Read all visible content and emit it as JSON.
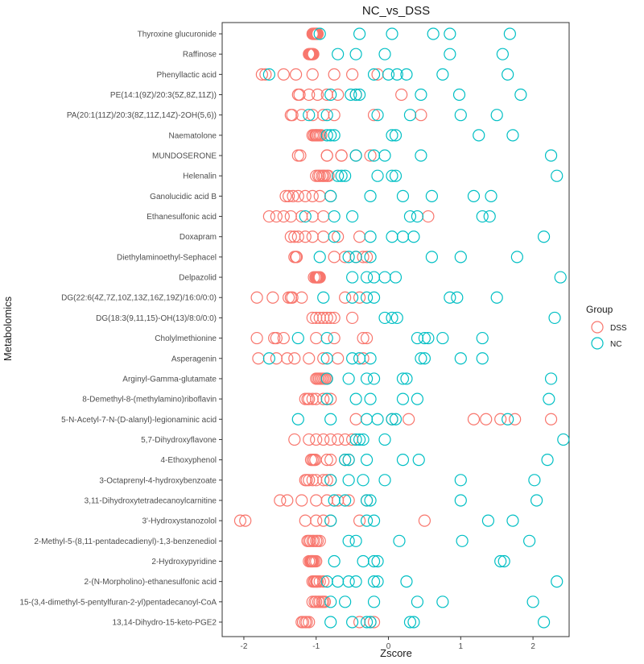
{
  "chart_data": {
    "type": "scatter",
    "title": "NC_vs_DSS",
    "xlabel": "Zscore",
    "ylabel": "Metabolomics",
    "xlim": [
      -2.3,
      2.5
    ],
    "xticks": [
      -2,
      -1,
      0,
      1,
      2
    ],
    "grid": false,
    "legend": {
      "title": "Group",
      "position": "right",
      "entries": [
        "DSS",
        "NC"
      ]
    },
    "colors": {
      "DSS": "#F8766D",
      "NC": "#00BFC4"
    },
    "marker": "open-circle",
    "categories": [
      "Thyroxine glucuronide",
      "Raffinose",
      "Phenyllactic acid",
      "PE(14:1(9Z)/20:3(5Z,8Z,11Z))",
      "PA(20:1(11Z)/20:3(8Z,11Z,14Z)-2OH(5,6))",
      "Naematolone",
      "MUNDOSERONE",
      "Helenalin",
      "Ganolucidic acid B",
      "Ethanesulfonic acid",
      "Doxapram",
      "Diethylaminoethyl-Sephacel",
      "Delpazolid",
      "DG(22:6(4Z,7Z,10Z,13Z,16Z,19Z)/16:0/0:0)",
      "DG(18:3(9,11,15)-OH(13)/8:0/0:0)",
      "Cholylmethionine",
      "Asperagenin",
      "Arginyl-Gamma-glutamate",
      "8-Demethyl-8-(methylamino)riboflavin",
      "5-N-Acetyl-7-N-(D-alanyl)-legionaminic acid",
      "5,7-Dihydroxyflavone",
      "4-Ethoxyphenol",
      "3-Octaprenyl-4-hydroxybenzoate",
      "3,11-Dihydroxytetradecanoylcarnitine",
      "3'-Hydroxystanozolol",
      "2-Methyl-5-(8,11-pentadecadienyl)-1,3-benzenediol",
      "2-Hydroxypyridine",
      "2-(N-Morpholino)-ethanesulfonic acid",
      "15-(3,4-dimethyl-5-pentylfuran-2-yl)pentadecanoyl-CoA",
      "13,14-Dihydro-15-keto-PGE2"
    ],
    "series": [
      {
        "name": "DSS",
        "values": [
          [
            -1.05,
            -1.03,
            -1.01,
            -0.99,
            -1.02,
            -1.0,
            -1.04,
            -0.98
          ],
          [
            -1.1,
            -1.08,
            -1.06,
            -1.05,
            -1.09,
            -1.07,
            -1.04,
            -1.06
          ],
          [
            -1.75,
            -1.7,
            -1.45,
            -1.28,
            -1.05,
            -0.75,
            -0.5,
            -0.15
          ],
          [
            -1.25,
            -1.23,
            -1.1,
            -0.98,
            -0.85,
            -0.7,
            -0.45,
            0.18
          ],
          [
            -1.35,
            -1.33,
            -1.2,
            -1.05,
            -0.9,
            -0.75,
            -0.2,
            0.45
          ],
          [
            -1.05,
            -1.03,
            -1.01,
            -0.99,
            -0.97,
            -1.0,
            -0.95,
            -0.93
          ],
          [
            -1.25,
            -1.22,
            -0.85,
            -0.65,
            -0.45,
            -0.25,
            -0.85,
            -0.65
          ],
          [
            -1.0,
            -0.97,
            -0.95,
            -0.92,
            -0.9,
            -0.88,
            -0.85,
            -0.83
          ],
          [
            -1.42,
            -1.38,
            -1.32,
            -1.25,
            -1.15,
            -1.05,
            -0.95,
            -0.8
          ],
          [
            -1.65,
            -1.55,
            -1.45,
            -1.35,
            -1.2,
            -1.05,
            -0.9,
            0.55
          ],
          [
            -1.35,
            -1.3,
            -1.25,
            -1.15,
            -1.05,
            -0.9,
            -0.7,
            -0.4
          ],
          [
            -1.3,
            -1.28,
            -1.27,
            -0.75,
            -0.6,
            -0.45,
            -0.35,
            -0.3
          ],
          [
            -1.03,
            -1.01,
            -0.99,
            -0.97,
            -0.95,
            -1.0,
            -0.98,
            -0.96
          ],
          [
            -1.82,
            -1.6,
            -1.38,
            -1.35,
            -1.33,
            -1.2,
            -0.6,
            -0.4
          ],
          [
            -1.05,
            -1.0,
            -0.95,
            -0.9,
            -0.85,
            -0.8,
            -0.75,
            -0.5
          ],
          [
            -1.82,
            -1.58,
            -1.55,
            -1.45,
            -1.0,
            -0.75,
            -0.35,
            -0.3
          ],
          [
            -1.8,
            -1.55,
            -1.4,
            -1.3,
            -1.1,
            -0.9,
            -0.7,
            -0.35
          ],
          [
            -1.0,
            -0.98,
            -0.96,
            -0.94,
            -0.92,
            -0.9,
            -0.88,
            -0.86
          ],
          [
            -1.15,
            -1.12,
            -1.1,
            -1.05,
            -1.0,
            -0.9,
            -0.85,
            -0.8
          ],
          [
            -0.45,
            0.05,
            0.28,
            1.18,
            1.35,
            1.55,
            1.75,
            2.25
          ],
          [
            -1.3,
            -1.1,
            -1.0,
            -0.9,
            -0.8,
            -0.7,
            -0.6,
            -0.5
          ],
          [
            -1.07,
            -1.05,
            -1.03,
            -1.01,
            -0.85,
            -0.8,
            -0.6,
            -0.55
          ],
          [
            -1.15,
            -1.13,
            -1.1,
            -1.05,
            -1.0,
            -0.9,
            -0.85,
            -0.8
          ],
          [
            -1.5,
            -1.4,
            -1.2,
            -1.0,
            -0.85,
            -0.7,
            -0.55,
            -0.3
          ],
          [
            -2.05,
            -1.98,
            -1.15,
            -1.0,
            -0.9,
            -0.8,
            -0.4,
            0.5
          ],
          [
            -1.12,
            -1.1,
            -1.08,
            -1.05,
            -1.03,
            -1.0,
            -0.98,
            -0.95
          ],
          [
            -1.1,
            -1.08,
            -1.06,
            -1.04,
            -1.02,
            -1.0,
            -1.05,
            -1.07
          ],
          [
            -1.05,
            -1.03,
            -1.0,
            -0.98,
            -0.95,
            -0.9,
            -1.02,
            -0.99
          ],
          [
            -1.05,
            -1.02,
            -1.0,
            -0.97,
            -0.95,
            -0.92,
            -0.9,
            -0.88
          ],
          [
            -1.2,
            -1.18,
            -1.15,
            -1.13,
            -1.1,
            -0.4,
            -0.25,
            -0.2
          ]
        ]
      },
      {
        "name": "NC",
        "values": [
          [
            -0.95,
            -0.4,
            0.05,
            0.62,
            0.85,
            1.68
          ],
          [
            -0.7,
            -0.45,
            -0.05,
            0.85,
            1.58
          ],
          [
            -1.65,
            -0.2,
            0.0,
            0.12,
            0.25,
            0.75,
            1.65
          ],
          [
            -0.8,
            -0.52,
            -0.45,
            -0.4,
            0.45,
            0.98,
            1.83
          ],
          [
            -1.1,
            -0.85,
            -0.15,
            0.3,
            1.0,
            1.5
          ],
          [
            -0.85,
            -0.8,
            -0.75,
            0.05,
            0.1,
            1.25,
            1.72
          ],
          [
            -0.45,
            -0.2,
            -0.05,
            0.45,
            2.25
          ],
          [
            -0.7,
            -0.65,
            -0.6,
            -0.15,
            0.05,
            0.1,
            2.33
          ],
          [
            -0.8,
            -0.25,
            0.2,
            0.6,
            1.18,
            1.42
          ],
          [
            -1.15,
            -0.75,
            -0.5,
            0.3,
            0.4,
            1.3,
            1.4
          ],
          [
            -0.75,
            -0.25,
            0.05,
            0.2,
            0.35,
            2.15
          ],
          [
            -0.95,
            -0.55,
            -0.45,
            -0.25,
            0.6,
            1.0,
            1.78
          ],
          [
            -0.5,
            -0.3,
            -0.2,
            -0.05,
            0.1,
            2.38
          ],
          [
            -0.9,
            -0.5,
            -0.3,
            -0.2,
            0.85,
            0.95,
            1.5
          ],
          [
            -0.05,
            0.05,
            0.12,
            2.3
          ],
          [
            -1.25,
            -0.85,
            0.4,
            0.5,
            0.55,
            0.75,
            1.3
          ],
          [
            -1.65,
            -0.85,
            -0.5,
            -0.4,
            -0.25,
            0.45,
            0.5,
            1.0,
            1.3
          ],
          [
            -0.85,
            -0.55,
            -0.3,
            -0.2,
            0.2,
            0.25,
            2.25
          ],
          [
            -0.85,
            -0.45,
            -0.25,
            0.2,
            0.4,
            2.22
          ],
          [
            -1.25,
            -0.8,
            -0.3,
            -0.15,
            0.05,
            0.1,
            1.65
          ],
          [
            -0.45,
            -0.4,
            -0.35,
            -0.05,
            2.42
          ],
          [
            -0.6,
            -0.55,
            -0.3,
            0.2,
            0.42,
            2.2
          ],
          [
            -0.8,
            -0.55,
            -0.35,
            -0.05,
            1.0,
            2.02
          ],
          [
            -0.75,
            -0.6,
            -0.3,
            -0.25,
            1.0,
            2.05
          ],
          [
            -0.8,
            -0.3,
            -0.2,
            1.38,
            1.72
          ],
          [
            -0.55,
            -0.45,
            0.15,
            1.02,
            1.95
          ],
          [
            -0.75,
            -0.35,
            -0.2,
            -0.15,
            1.55,
            1.6
          ],
          [
            -0.85,
            -0.7,
            -0.55,
            -0.45,
            -0.2,
            -0.15,
            0.25,
            2.33
          ],
          [
            -0.8,
            -0.6,
            -0.2,
            0.4,
            0.75,
            2.0
          ],
          [
            -0.8,
            -0.5,
            -0.3,
            -0.25,
            0.3,
            0.35,
            2.15
          ]
        ]
      }
    ]
  }
}
